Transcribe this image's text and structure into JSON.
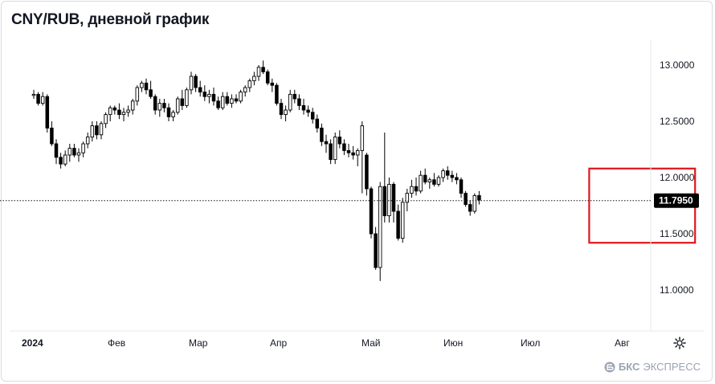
{
  "title": "CNY/RUB, дневной график",
  "brand": {
    "prefix": "БКС",
    "name": "ЭКСПРЕСС"
  },
  "icons": {
    "settings": "gear-icon",
    "brand": "bks-logo-icon"
  },
  "colors": {
    "up": "#ffffff",
    "down": "#000000",
    "wick": "#000000",
    "highlight": "#e0161b",
    "price_tag": "#000000"
  },
  "chart_data": {
    "type": "candlestick",
    "title": "CNY/RUB, дневной график",
    "x_labels": [
      "2024",
      "Фев",
      "Мар",
      "Апр",
      "Май",
      "Июн",
      "Июл",
      "Авг"
    ],
    "y_ticks": [
      "13.0000",
      "12.5000",
      "12.0000",
      "11.5000",
      "11.0000"
    ],
    "ylim": [
      10.6,
      13.3
    ],
    "last_price": "11.7950",
    "last_price_value": 11.795,
    "highlight_region": {
      "x_start": 124,
      "x_end": 142,
      "y_low": 11.42,
      "y_high": 12.08
    },
    "candles": [
      [
        12.73,
        12.78,
        12.7,
        12.74
      ],
      [
        12.74,
        12.76,
        12.64,
        12.66
      ],
      [
        12.66,
        12.76,
        12.64,
        12.72
      ],
      [
        12.72,
        12.74,
        12.4,
        12.44
      ],
      [
        12.44,
        12.5,
        12.28,
        12.3
      ],
      [
        12.3,
        12.34,
        12.12,
        12.18
      ],
      [
        12.18,
        12.22,
        12.08,
        12.12
      ],
      [
        12.12,
        12.24,
        12.1,
        12.2
      ],
      [
        12.2,
        12.3,
        12.14,
        12.26
      ],
      [
        12.26,
        12.3,
        12.18,
        12.2
      ],
      [
        12.2,
        12.26,
        12.14,
        12.22
      ],
      [
        12.22,
        12.32,
        12.18,
        12.3
      ],
      [
        12.3,
        12.4,
        12.26,
        12.36
      ],
      [
        12.36,
        12.5,
        12.32,
        12.46
      ],
      [
        12.46,
        12.5,
        12.34,
        12.38
      ],
      [
        12.38,
        12.5,
        12.34,
        12.48
      ],
      [
        12.48,
        12.58,
        12.44,
        12.56
      ],
      [
        12.56,
        12.64,
        12.5,
        12.62
      ],
      [
        12.62,
        12.64,
        12.56,
        12.6
      ],
      [
        12.6,
        12.66,
        12.52,
        12.56
      ],
      [
        12.56,
        12.62,
        12.5,
        12.58
      ],
      [
        12.58,
        12.64,
        12.54,
        12.6
      ],
      [
        12.6,
        12.7,
        12.56,
        12.68
      ],
      [
        12.68,
        12.82,
        12.64,
        12.8
      ],
      [
        12.8,
        12.86,
        12.76,
        12.84
      ],
      [
        12.84,
        12.88,
        12.74,
        12.78
      ],
      [
        12.78,
        12.86,
        12.7,
        12.72
      ],
      [
        12.72,
        12.74,
        12.56,
        12.6
      ],
      [
        12.6,
        12.7,
        12.54,
        12.66
      ],
      [
        12.66,
        12.7,
        12.58,
        12.62
      ],
      [
        12.62,
        12.66,
        12.5,
        12.54
      ],
      [
        12.54,
        12.6,
        12.5,
        12.58
      ],
      [
        12.58,
        12.72,
        12.56,
        12.7
      ],
      [
        12.7,
        12.78,
        12.6,
        12.64
      ],
      [
        12.64,
        12.8,
        12.62,
        12.78
      ],
      [
        12.78,
        12.94,
        12.74,
        12.9
      ],
      [
        12.9,
        12.92,
        12.76,
        12.8
      ],
      [
        12.8,
        12.86,
        12.72,
        12.76
      ],
      [
        12.76,
        12.82,
        12.68,
        12.72
      ],
      [
        12.72,
        12.78,
        12.66,
        12.74
      ],
      [
        12.74,
        12.8,
        12.64,
        12.68
      ],
      [
        12.68,
        12.72,
        12.6,
        12.62
      ],
      [
        12.62,
        12.76,
        12.6,
        12.72
      ],
      [
        12.72,
        12.76,
        12.64,
        12.66
      ],
      [
        12.66,
        12.74,
        12.62,
        12.7
      ],
      [
        12.7,
        12.74,
        12.66,
        12.68
      ],
      [
        12.68,
        12.78,
        12.66,
        12.76
      ],
      [
        12.76,
        12.82,
        12.72,
        12.8
      ],
      [
        12.8,
        12.88,
        12.76,
        12.86
      ],
      [
        12.86,
        12.94,
        12.82,
        12.9
      ],
      [
        12.9,
        13.0,
        12.86,
        12.98
      ],
      [
        12.98,
        13.04,
        12.92,
        12.94
      ],
      [
        12.94,
        12.96,
        12.82,
        12.84
      ],
      [
        12.84,
        12.88,
        12.76,
        12.82
      ],
      [
        12.82,
        12.84,
        12.64,
        12.66
      ],
      [
        12.66,
        12.7,
        12.52,
        12.56
      ],
      [
        12.56,
        12.64,
        12.5,
        12.6
      ],
      [
        12.6,
        12.78,
        12.58,
        12.74
      ],
      [
        12.74,
        12.78,
        12.66,
        12.7
      ],
      [
        12.7,
        12.74,
        12.6,
        12.64
      ],
      [
        12.64,
        12.7,
        12.56,
        12.6
      ],
      [
        12.6,
        12.64,
        12.54,
        12.58
      ],
      [
        12.58,
        12.62,
        12.48,
        12.52
      ],
      [
        12.52,
        12.56,
        12.4,
        12.44
      ],
      [
        12.44,
        12.48,
        12.28,
        12.32
      ],
      [
        12.32,
        12.38,
        12.22,
        12.3
      ],
      [
        12.3,
        12.34,
        12.12,
        12.16
      ],
      [
        12.16,
        12.4,
        12.12,
        12.36
      ],
      [
        12.36,
        12.42,
        12.26,
        12.3
      ],
      [
        12.3,
        12.34,
        12.2,
        12.24
      ],
      [
        12.24,
        12.3,
        12.18,
        12.22
      ],
      [
        12.22,
        12.28,
        12.16,
        12.2
      ],
      [
        12.2,
        12.26,
        12.1,
        12.24
      ],
      [
        12.24,
        12.5,
        11.86,
        12.46
      ],
      [
        12.2,
        12.22,
        11.84,
        11.9
      ],
      [
        11.9,
        11.92,
        11.46,
        11.5
      ],
      [
        11.5,
        11.56,
        11.18,
        11.2
      ],
      [
        11.2,
        11.96,
        11.08,
        11.92
      ],
      [
        11.92,
        12.4,
        11.6,
        11.66
      ],
      [
        11.66,
        12.0,
        11.6,
        11.94
      ],
      [
        11.94,
        11.96,
        11.6,
        11.7
      ],
      [
        11.7,
        11.76,
        11.44,
        11.46
      ],
      [
        11.46,
        11.82,
        11.42,
        11.78
      ],
      [
        11.78,
        11.9,
        11.7,
        11.86
      ],
      [
        11.86,
        11.98,
        11.82,
        11.92
      ],
      [
        11.92,
        12.0,
        11.84,
        11.88
      ],
      [
        11.88,
        12.06,
        11.86,
        12.02
      ],
      [
        12.02,
        12.08,
        11.94,
        11.96
      ],
      [
        11.96,
        12.0,
        11.9,
        11.98
      ],
      [
        11.98,
        12.04,
        11.92,
        11.94
      ],
      [
        11.94,
        12.02,
        11.92,
        12.0
      ],
      [
        12.0,
        12.08,
        11.96,
        12.06
      ],
      [
        12.06,
        12.1,
        11.98,
        12.02
      ],
      [
        12.02,
        12.06,
        11.96,
        12.0
      ],
      [
        12.0,
        12.04,
        11.94,
        11.98
      ],
      [
        11.98,
        12.0,
        11.82,
        11.86
      ],
      [
        11.86,
        11.88,
        11.74,
        11.76
      ],
      [
        11.76,
        11.8,
        11.66,
        11.7
      ],
      [
        11.7,
        11.86,
        11.68,
        11.84
      ],
      [
        11.84,
        11.88,
        11.76,
        11.8
      ]
    ]
  }
}
